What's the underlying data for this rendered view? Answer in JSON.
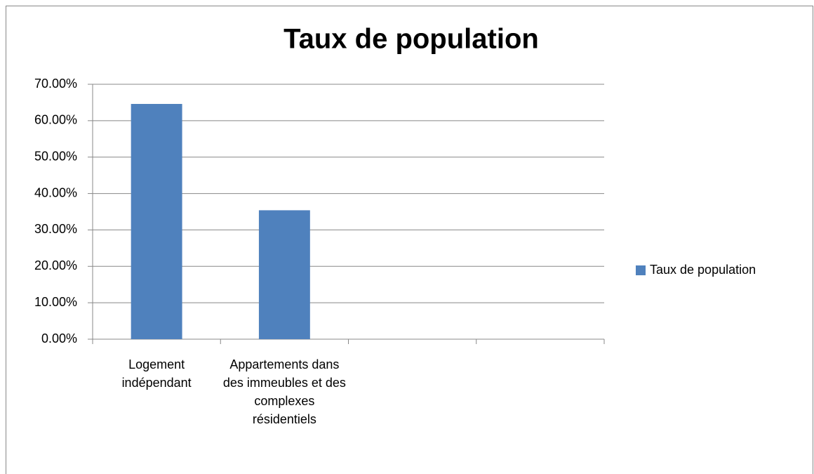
{
  "chart_data": {
    "type": "bar",
    "title": "Taux de population",
    "categories": [
      "Logement indépendant",
      "Appartements dans des immeubles et des complexes résidentiels",
      null,
      null
    ],
    "series": [
      {
        "name": "Taux de population",
        "color": "#4f81bd",
        "values": [
          64.6,
          35.4,
          null,
          null
        ]
      }
    ],
    "ylim": [
      0,
      70
    ],
    "yticks": [
      {
        "value": 0,
        "label": "0.00%"
      },
      {
        "value": 10,
        "label": "10.00%"
      },
      {
        "value": 20,
        "label": "20.00%"
      },
      {
        "value": 30,
        "label": "30.00%"
      },
      {
        "value": 40,
        "label": "40.00%"
      },
      {
        "value": 50,
        "label": "50.00%"
      },
      {
        "value": 60,
        "label": "60.00%"
      },
      {
        "value": 70,
        "label": "70.00%"
      }
    ],
    "grid": true,
    "legend": "right"
  }
}
